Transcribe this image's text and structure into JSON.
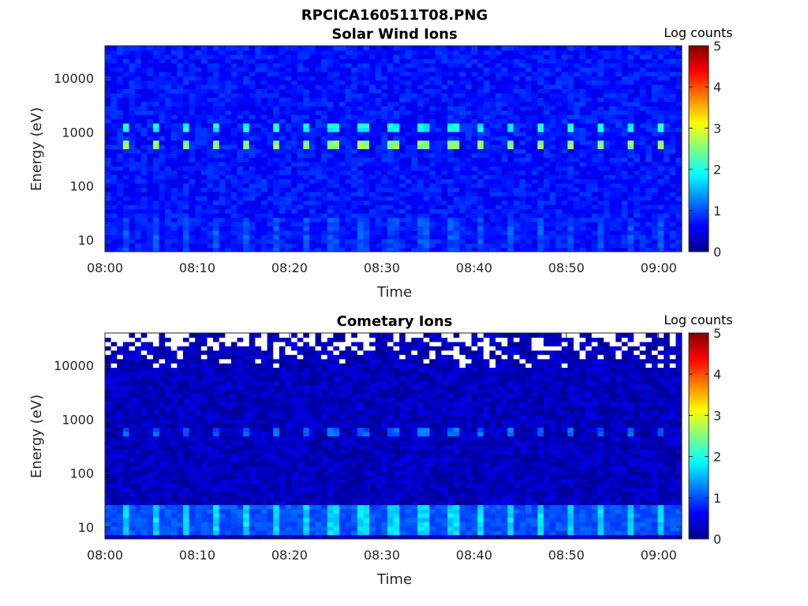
{
  "figure": {
    "title": "RPCICA160511T08.PNG"
  },
  "chart_data": [
    {
      "type": "heatmap",
      "title": "Solar Wind Ions",
      "xlabel": "Time",
      "ylabel": "Energy (eV)",
      "x_ticks": [
        "08:00",
        "08:10",
        "08:20",
        "08:30",
        "08:40",
        "08:50",
        "09:00"
      ],
      "x_range_minutes": [
        0,
        62.5
      ],
      "y_scale": "log",
      "y_ticks": [
        10,
        100,
        1000,
        10000
      ],
      "y_range": [
        6,
        40000
      ],
      "colorbar": {
        "label": "Log counts",
        "ticks": [
          0,
          1,
          2,
          3,
          4,
          5
        ],
        "range": [
          0,
          5
        ],
        "colormap": "jet"
      },
      "background_log_counts": 0.7,
      "features": [
        {
          "name": "proton beam",
          "energy_eV": 550,
          "log_counts": 2.6,
          "period_minutes": 3.2
        },
        {
          "name": "alpha beam",
          "energy_eV": 1150,
          "log_counts": 1.9,
          "period_minutes": 3.2
        },
        {
          "name": "low energy noise",
          "energy_eV": 12,
          "log_counts": 1.0,
          "period_minutes": 3.2
        }
      ]
    },
    {
      "type": "heatmap",
      "title": "Cometary Ions",
      "xlabel": "Time",
      "ylabel": "Energy (eV)",
      "x_ticks": [
        "08:00",
        "08:10",
        "08:20",
        "08:30",
        "08:40",
        "08:50",
        "09:00"
      ],
      "x_range_minutes": [
        0,
        62.5
      ],
      "y_scale": "log",
      "y_ticks": [
        10,
        100,
        1000,
        10000
      ],
      "y_range": [
        6,
        40000
      ],
      "colorbar": {
        "label": "Log counts",
        "ticks": [
          0,
          1,
          2,
          3,
          4,
          5
        ],
        "range": [
          0,
          5
        ],
        "colormap": "jet"
      },
      "background_log_counts": 0.3,
      "features": [
        {
          "name": "proton beam",
          "energy_eV": 600,
          "log_counts": 1.1,
          "period_minutes": 3.2
        },
        {
          "name": "low energy ions",
          "energy_eV": 14,
          "log_counts": 1.7,
          "period_minutes": 3.2
        },
        {
          "name": "high energy gaps",
          "energy_eV_min": 10000,
          "log_counts": null
        }
      ]
    }
  ]
}
